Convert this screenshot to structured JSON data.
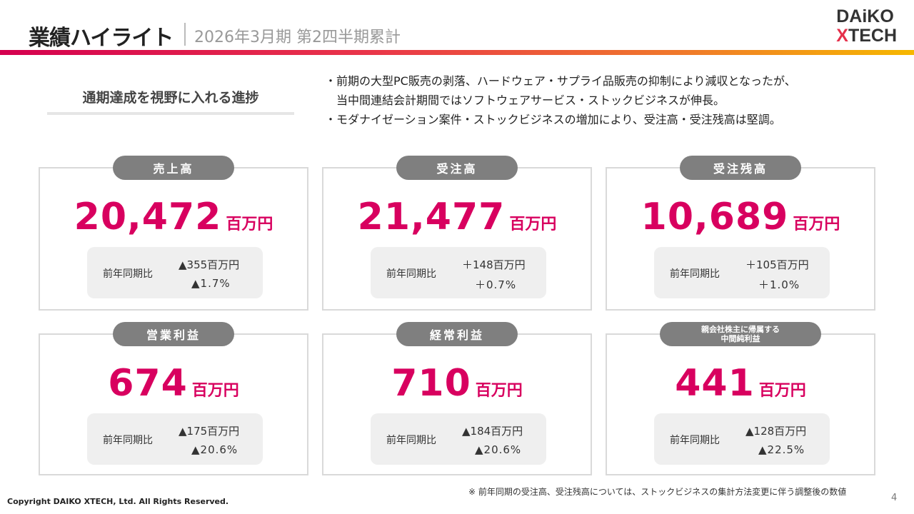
{
  "header": {
    "title": "業績ハイライト",
    "subtitle": "2026年3月期 第2四半期累計",
    "logo_line1": "DAiKO",
    "logo_x": "X",
    "logo_line2": "TECH"
  },
  "lead": "通期達成を視野に入れる進捗",
  "bullets": [
    "・前期の大型PC販売の剥落、ハードウェア・サプライ品販売の抑制により減収となったが、",
    "　当中間連結会計期間ではソフトウェアサービス・ストックビジネスが伸長。",
    "・モダナイゼーション案件・ストックビジネスの増加により、受注高・受注残高は堅調。"
  ],
  "cards": [
    {
      "label": "売上高",
      "value": "20,472",
      "unit": "百万円",
      "cmp_label": "前年同期比",
      "diff": "▲355百万円",
      "pct": "▲1.7%"
    },
    {
      "label": "受注高",
      "value": "21,477",
      "unit": "百万円",
      "cmp_label": "前年同期比",
      "diff": "＋148百万円",
      "pct": "＋0.7%"
    },
    {
      "label": "受注残高",
      "value": "10,689",
      "unit": "百万円",
      "cmp_label": "前年同期比",
      "diff": "＋105百万円",
      "pct": "＋1.0%"
    },
    {
      "label": "営業利益",
      "value": "674",
      "unit": "百万円",
      "cmp_label": "前年同期比",
      "diff": "▲175百万円",
      "pct": "▲20.6%"
    },
    {
      "label": "経常利益",
      "value": "710",
      "unit": "百万円",
      "cmp_label": "前年同期比",
      "diff": "▲184百万円",
      "pct": "▲20.6%"
    },
    {
      "label": "親会社株主に帰属する",
      "label2": "中間純利益",
      "value": "441",
      "unit": "百万円",
      "cmp_label": "前年同期比",
      "diff": "▲128百万円",
      "pct": "▲22.5%"
    }
  ],
  "note": "※ 前年同期の受注高、受注残高については、ストックビジネスの集計方法変更に伴う調整後の数値",
  "copyright": "Copyright DAIKO XTECH, Ltd. All Rights Reserved.",
  "page_number": "4",
  "colors": {
    "accent": "#d8005f",
    "pill": "#7f7f7f"
  }
}
